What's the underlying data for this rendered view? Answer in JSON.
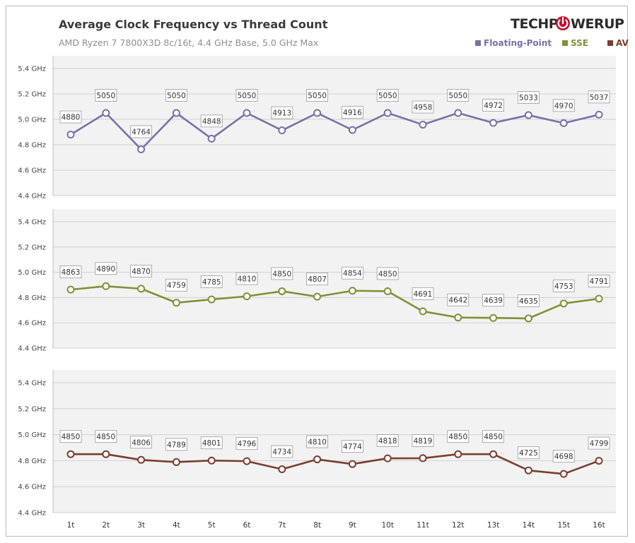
{
  "brand": {
    "logo_left": "TECHP",
    "logo_right": "WERUP",
    "logo_icon": "power-icon",
    "logo_color": "#2b2b2b",
    "logo_accent": "#c8102e"
  },
  "chart_data": {
    "type": "line",
    "title": "Average Clock Frequency vs Thread Count",
    "subtitle": "AMD Ryzen 7 7800X3D 8c/16t, 4.4 GHz Base, 5.0 GHz Max",
    "categories": [
      "1t",
      "2t",
      "3t",
      "4t",
      "5t",
      "6t",
      "7t",
      "8t",
      "9t",
      "10t",
      "11t",
      "12t",
      "13t",
      "14t",
      "15t",
      "16t"
    ],
    "legend_placement": "top-right",
    "grid": true,
    "ylim": [
      4400,
      5500
    ],
    "yticks": [
      4400,
      4600,
      4800,
      5000,
      5200,
      5400
    ],
    "ytick_labels": [
      "4.4 GHz",
      "4.6 GHz",
      "4.8 GHz",
      "5.0 GHz",
      "5.2 GHz",
      "5.4 GHz"
    ],
    "series": [
      {
        "name": "Floating-Point",
        "color": "#7a6fa8",
        "values": [
          4880,
          5050,
          4764,
          5050,
          4848,
          5050,
          4913,
          5050,
          4916,
          5050,
          4958,
          5050,
          4972,
          5033,
          4970,
          5037
        ]
      },
      {
        "name": "SSE",
        "color": "#7f9136",
        "values": [
          4863,
          4890,
          4870,
          4759,
          4785,
          4810,
          4850,
          4807,
          4854,
          4850,
          4691,
          4642,
          4639,
          4635,
          4753,
          4791
        ]
      },
      {
        "name": "AVX",
        "color": "#7b3d2e",
        "values": [
          4850,
          4850,
          4806,
          4789,
          4801,
          4796,
          4734,
          4810,
          4774,
          4818,
          4819,
          4850,
          4850,
          4725,
          4698,
          4799
        ]
      }
    ]
  }
}
